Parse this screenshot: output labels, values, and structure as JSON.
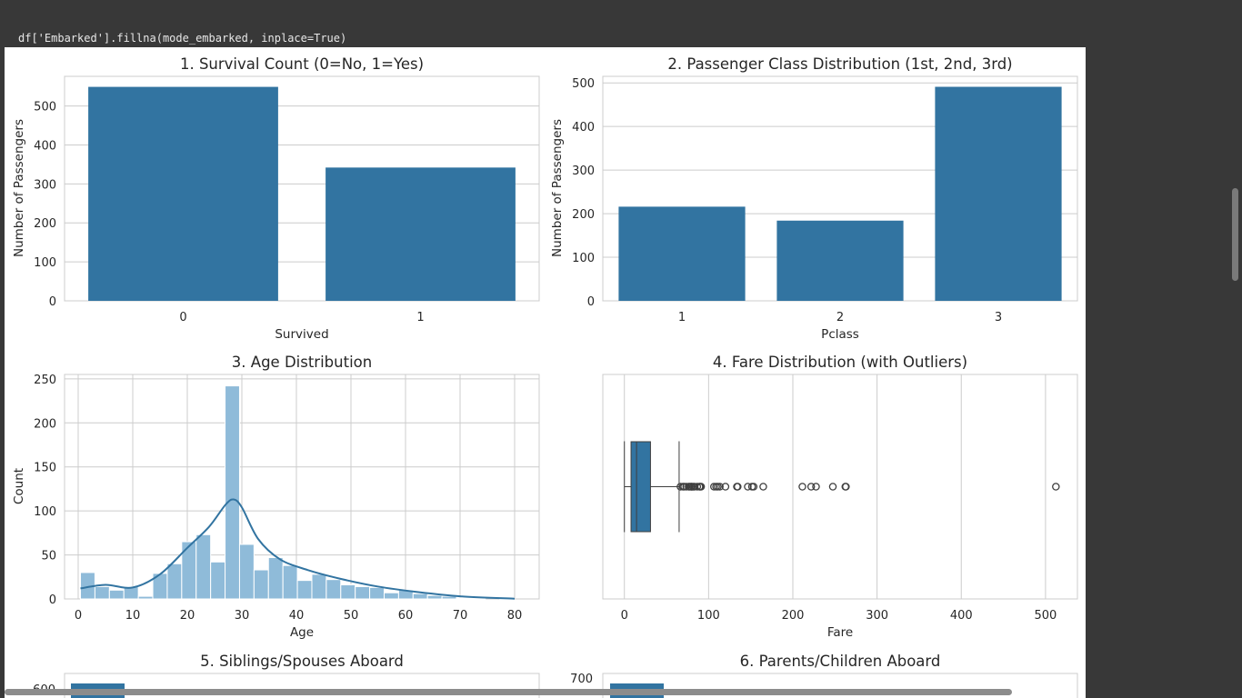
{
  "code": {
    "line": "df['Embarked'].fillna(mode_embarked, inplace=True)"
  },
  "colors": {
    "bar": "#3274a1",
    "hist": "#8fbbd9",
    "grid": "#cccccc",
    "frame": "#cccccc"
  },
  "chart_data": [
    {
      "type": "bar",
      "title": "1. Survival Count (0=No, 1=Yes)",
      "xlabel": "Survived",
      "ylabel": "Number of Passengers",
      "categories": [
        "0",
        "1"
      ],
      "values": [
        549,
        342
      ],
      "ylim": [
        0,
        576
      ],
      "yticks": [
        0,
        100,
        200,
        300,
        400,
        500
      ]
    },
    {
      "type": "bar",
      "title": "2. Passenger Class Distribution (1st, 2nd, 3rd)",
      "xlabel": "Pclass",
      "ylabel": "Number of Passengers",
      "categories": [
        "1",
        "2",
        "3"
      ],
      "values": [
        216,
        184,
        491
      ],
      "ylim": [
        0,
        515
      ],
      "yticks": [
        0,
        100,
        200,
        300,
        400,
        500
      ]
    },
    {
      "type": "histogram",
      "title": "3. Age Distribution",
      "xlabel": "Age",
      "ylabel": "Count",
      "xlim": [
        -2.5,
        84.5
      ],
      "ylim": [
        0,
        255
      ],
      "xticks": [
        0,
        10,
        20,
        30,
        40,
        50,
        60,
        70,
        80
      ],
      "yticks": [
        0,
        50,
        100,
        150,
        200,
        250
      ],
      "bin_start": 0.42,
      "bin_width": 2.6506,
      "counts": [
        30,
        14,
        10,
        14,
        3,
        29,
        40,
        65,
        73,
        42,
        242,
        62,
        33,
        47,
        38,
        21,
        28,
        22,
        16,
        14,
        13,
        7,
        10,
        6,
        4,
        3,
        1,
        1,
        0,
        1
      ],
      "kde": [
        [
          0.42,
          12
        ],
        [
          5,
          16
        ],
        [
          10,
          13
        ],
        [
          15,
          28
        ],
        [
          20,
          58
        ],
        [
          24,
          82
        ],
        [
          27,
          107
        ],
        [
          28.5,
          113
        ],
        [
          30,
          104
        ],
        [
          33,
          68
        ],
        [
          37,
          45
        ],
        [
          42,
          33
        ],
        [
          48,
          23
        ],
        [
          55,
          14
        ],
        [
          62,
          8
        ],
        [
          70,
          3
        ],
        [
          80,
          0.3
        ]
      ]
    },
    {
      "type": "box",
      "title": "4. Fare Distribution (with Outliers)",
      "xlabel": "Fare",
      "xlim": [
        -25.6,
        537.9
      ],
      "xticks": [
        0,
        100,
        200,
        300,
        400,
        500
      ],
      "whisker_low": 0,
      "q1": 7.91,
      "median": 14.45,
      "q3": 31.0,
      "whisker_high": 65.0,
      "outliers": [
        66.6,
        69.55,
        71,
        73.5,
        76.3,
        77.3,
        78.85,
        79.65,
        80,
        81.86,
        83.16,
        86.5,
        89.1,
        90,
        91.08,
        106.4,
        108.9,
        110.88,
        113.28,
        120,
        133.65,
        134.5,
        146.52,
        151.55,
        153.46,
        164.87,
        211.34,
        221.78,
        227.53,
        247.52,
        262.38,
        263,
        512.33
      ]
    },
    {
      "type": "bar",
      "title": "5. Siblings/Spouses Aboard",
      "yticks_visible": [
        "600"
      ]
    },
    {
      "type": "bar",
      "title": "6. Parents/Children Aboard",
      "yticks_visible": [
        "700"
      ]
    }
  ]
}
